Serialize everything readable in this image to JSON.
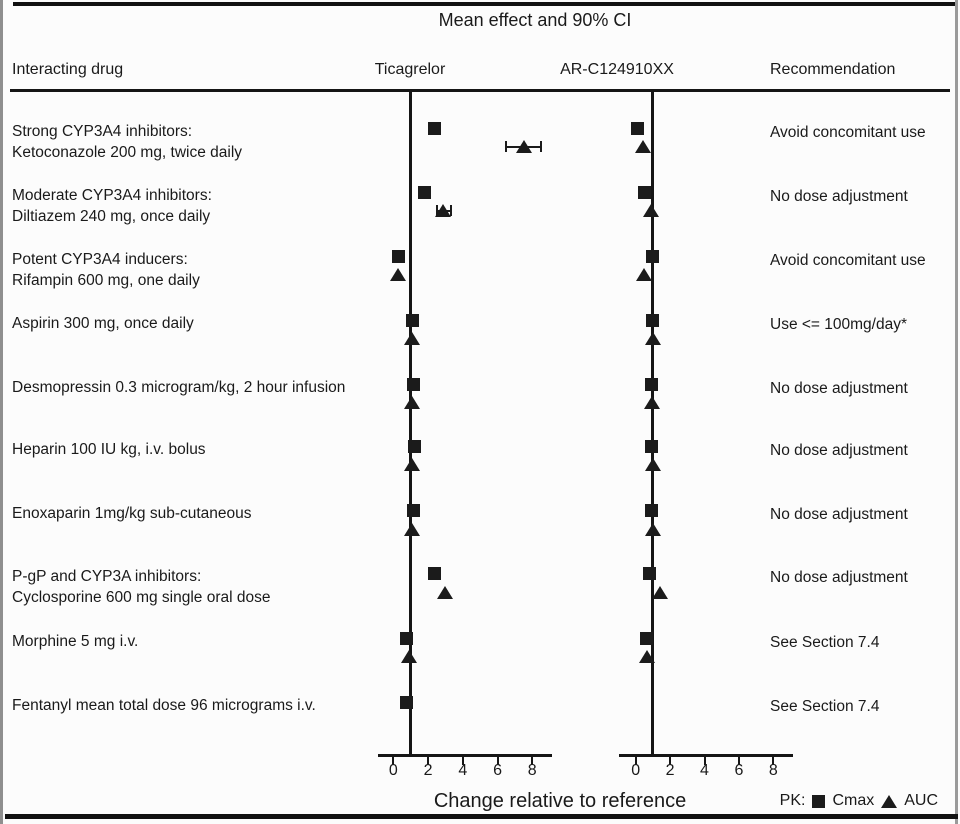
{
  "title": "Mean effect and 90% CI",
  "columns": {
    "interacting_drug": "Interacting drug",
    "panel1": "Ticagrelor",
    "panel2": "AR-C124910XX",
    "recommendation": "Recommendation"
  },
  "legend": {
    "prefix": "PK:",
    "cmax_label": "Cmax",
    "auc_label": "AUC"
  },
  "colors": {
    "marker": "#1b1b1b",
    "line": "#151515",
    "text": "#1a1a1a"
  },
  "chart_data": {
    "type": "scatter",
    "title": "Mean effect and 90% CI",
    "xlabel": "Change relative to reference",
    "x_ticks": [
      0,
      2,
      4,
      6,
      8
    ],
    "xlim": [
      -1,
      9.2
    ],
    "reference_line_x": 1,
    "grid": false,
    "panels": [
      {
        "key": "ticagrelor",
        "name": "Ticagrelor"
      },
      {
        "key": "arc",
        "name": "AR-C124910XX"
      }
    ],
    "marker_series": [
      {
        "key": "cmax",
        "label": "Cmax",
        "marker": "square"
      },
      {
        "key": "auc",
        "label": "AUC",
        "marker": "triangle"
      }
    ],
    "rows": [
      {
        "label": [
          "Strong CYP3A4 inhibitors:",
          "Ketoconazole 200 mg, twice daily"
        ],
        "recommendation": "Avoid concomitant use",
        "ticagrelor": {
          "cmax": 2.4,
          "auc": 7.5,
          "auc_ci": [
            6.5,
            8.5
          ]
        },
        "arc": {
          "cmax": 0.1,
          "auc": 0.4
        }
      },
      {
        "label": [
          "Moderate CYP3A4 inhibitors:",
          "Diltiazem 240 mg, once daily"
        ],
        "recommendation": "No dose adjustment",
        "ticagrelor": {
          "cmax": 1.8,
          "auc": 2.85,
          "auc_ci": [
            2.5,
            3.3
          ]
        },
        "arc": {
          "cmax": 0.5,
          "auc": 0.9
        }
      },
      {
        "label": [
          "Potent CYP3A4 inducers:",
          "Rifampin 600 mg, one daily"
        ],
        "recommendation": "Avoid concomitant use",
        "ticagrelor": {
          "cmax": 0.3,
          "auc": 0.25
        },
        "arc": {
          "cmax": 1.0,
          "auc": 0.5
        }
      },
      {
        "label": [
          "Aspirin 300 mg, once daily"
        ],
        "recommendation": "Use <= 100mg/day*",
        "ticagrelor": {
          "cmax": 1.1,
          "auc": 1.05
        },
        "arc": {
          "cmax": 1.0,
          "auc": 1.0
        }
      },
      {
        "label": [
          "Desmopressin 0.3 microgram/kg, 2 hour infusion"
        ],
        "recommendation": "No dose adjustment",
        "ticagrelor": {
          "cmax": 1.15,
          "auc": 1.05
        },
        "arc": {
          "cmax": 0.9,
          "auc": 0.95
        }
      },
      {
        "label": [
          "Heparin 100 IU kg, i.v. bolus"
        ],
        "recommendation": "No dose adjustment",
        "ticagrelor": {
          "cmax": 1.2,
          "auc": 1.1
        },
        "arc": {
          "cmax": 0.9,
          "auc": 1.0
        }
      },
      {
        "label": [
          "Enoxaparin 1mg/kg sub-cutaneous"
        ],
        "recommendation": "No dose adjustment",
        "ticagrelor": {
          "cmax": 1.15,
          "auc": 1.05
        },
        "arc": {
          "cmax": 0.9,
          "auc": 1.0
        }
      },
      {
        "label": [
          "P-gP and CYP3A inhibitors:",
          "Cyclosporine 600 mg single oral dose"
        ],
        "recommendation": "No dose adjustment",
        "ticagrelor": {
          "cmax": 2.4,
          "auc": 3.0
        },
        "arc": {
          "cmax": 0.8,
          "auc": 1.4
        }
      },
      {
        "label": [
          "Morphine 5 mg i.v."
        ],
        "recommendation": "See Section 7.4",
        "ticagrelor": {
          "cmax": 0.75,
          "auc": 0.9
        },
        "arc": {
          "cmax": 0.65,
          "auc": 0.65
        }
      },
      {
        "label": [
          "Fentanyl mean total dose 96 micrograms i.v."
        ],
        "recommendation": "See Section 7.4",
        "ticagrelor": {
          "cmax": 0.75
        },
        "arc": {}
      }
    ]
  }
}
